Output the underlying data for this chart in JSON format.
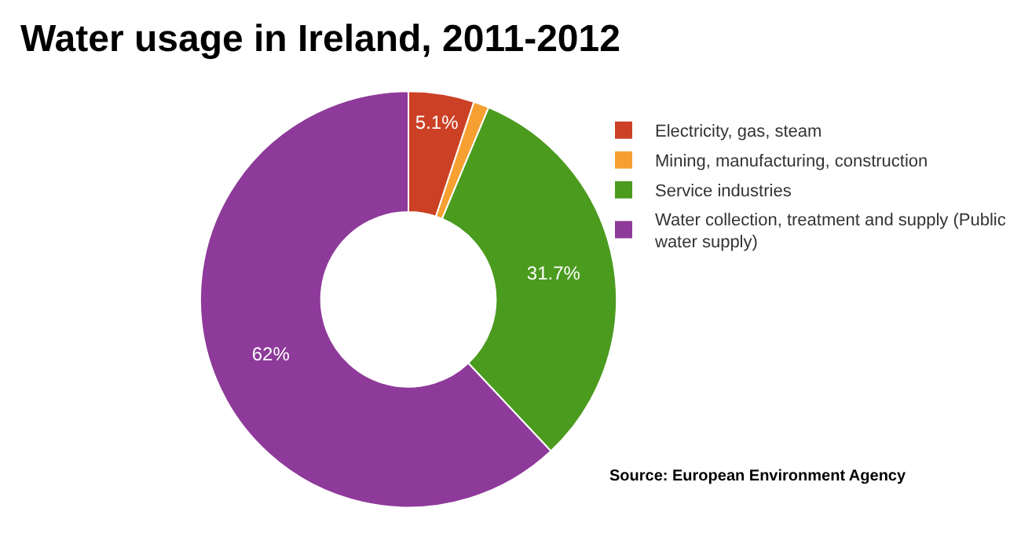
{
  "chart_data": {
    "type": "donut",
    "title": "Water usage in Ireland, 2011-2012",
    "categories": [
      "Electricity, gas, steam",
      "Mining, manufacturing, construction",
      "Service industries",
      "Water collection, treatment and supply (Public water supply)"
    ],
    "values": [
      5.1,
      1.2,
      31.7,
      62
    ],
    "value_labels": [
      "5.1%",
      null,
      "31.7%",
      "62%"
    ],
    "colors": [
      "#cc4125",
      "#f6a032",
      "#4b9b1f",
      "#8e3a9a"
    ],
    "legend": "right",
    "annotations": [
      "Source: European Environment Agency"
    ]
  }
}
